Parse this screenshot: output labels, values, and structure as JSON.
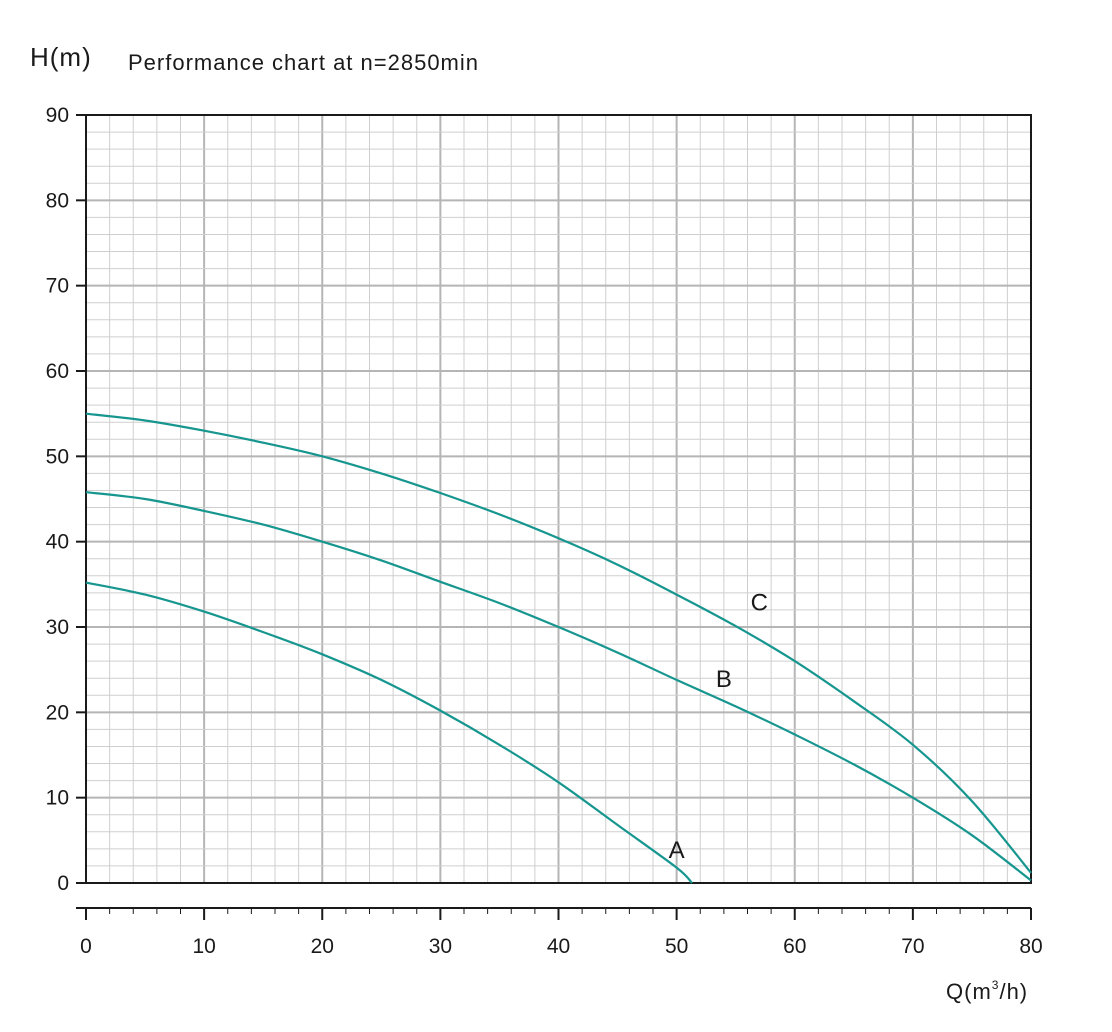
{
  "chart_data": {
    "type": "line",
    "title": "Performance chart at n=2850min",
    "ylabel": "H(m)",
    "xlabel": {
      "pre": "Q(m",
      "sup": "3",
      "post": "/h)"
    },
    "xlim": [
      0,
      80
    ],
    "ylim": [
      0,
      90
    ],
    "x_ticks": [
      0,
      10,
      20,
      30,
      40,
      50,
      60,
      70,
      80
    ],
    "y_ticks": [
      0,
      10,
      20,
      30,
      40,
      50,
      60,
      70,
      80,
      90
    ],
    "grid": true,
    "line_color": "#16968f",
    "series": [
      {
        "name": "A",
        "label_at": [
          50,
          4
        ],
        "points": [
          [
            0,
            35.2
          ],
          [
            5,
            33.8
          ],
          [
            10,
            31.8
          ],
          [
            15,
            29.4
          ],
          [
            20,
            26.8
          ],
          [
            25,
            23.8
          ],
          [
            30,
            20.2
          ],
          [
            35,
            16.2
          ],
          [
            40,
            11.8
          ],
          [
            45,
            6.8
          ],
          [
            50,
            1.8
          ],
          [
            51.3,
            0
          ]
        ]
      },
      {
        "name": "B",
        "label_at": [
          54,
          24
        ],
        "points": [
          [
            0,
            45.8
          ],
          [
            5,
            45
          ],
          [
            10,
            43.6
          ],
          [
            15,
            42
          ],
          [
            20,
            40
          ],
          [
            25,
            37.8
          ],
          [
            30,
            35.3
          ],
          [
            35,
            32.8
          ],
          [
            40,
            30
          ],
          [
            45,
            27
          ],
          [
            50,
            23.8
          ],
          [
            55,
            20.7
          ],
          [
            60,
            17.4
          ],
          [
            65,
            13.9
          ],
          [
            70,
            10
          ],
          [
            75,
            5.6
          ],
          [
            80,
            0.3
          ]
        ]
      },
      {
        "name": "C",
        "label_at": [
          57,
          33
        ],
        "points": [
          [
            0,
            55
          ],
          [
            5,
            54.2
          ],
          [
            10,
            53
          ],
          [
            15,
            51.6
          ],
          [
            20,
            50
          ],
          [
            25,
            48
          ],
          [
            30,
            45.7
          ],
          [
            35,
            43.2
          ],
          [
            40,
            40.4
          ],
          [
            45,
            37.3
          ],
          [
            50,
            33.8
          ],
          [
            55,
            30.1
          ],
          [
            60,
            26
          ],
          [
            65,
            21.3
          ],
          [
            70,
            16.2
          ],
          [
            75,
            9.6
          ],
          [
            80,
            1.2
          ]
        ]
      }
    ]
  }
}
